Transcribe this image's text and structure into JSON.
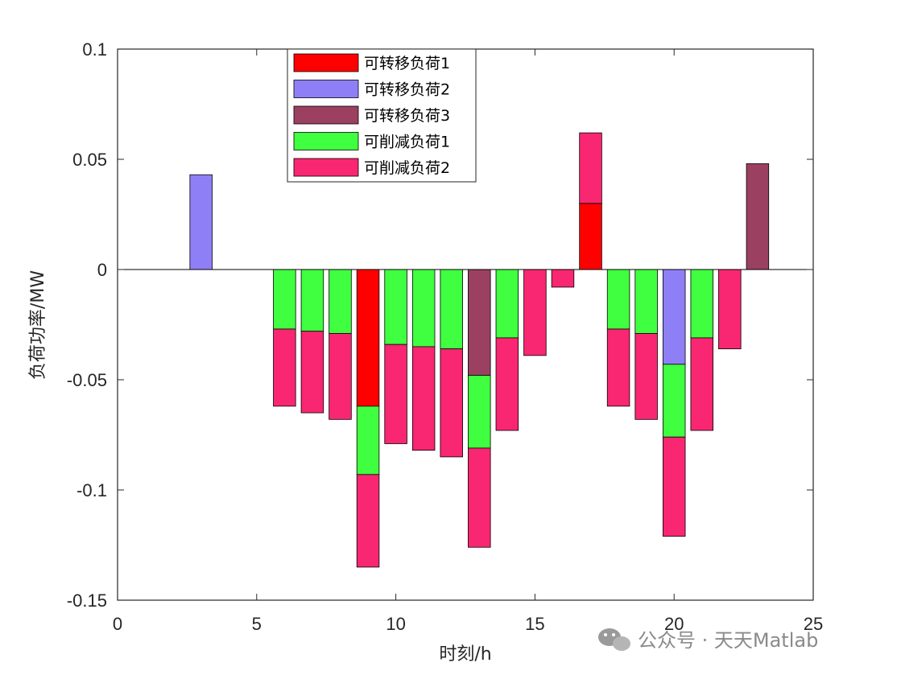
{
  "chart_data": {
    "type": "bar",
    "stacked": true,
    "xlabel": "时刻/h",
    "ylabel": "负荷功率/MW",
    "xlim": [
      0,
      25
    ],
    "ylim": [
      -0.15,
      0.1
    ],
    "xticks": [
      "0",
      "5",
      "10",
      "15",
      "20",
      "25"
    ],
    "yticks": [
      "0.1",
      "0.05",
      "0",
      "-0.05",
      "-0.1",
      "-0.15"
    ],
    "xtick_values": [
      0,
      5,
      10,
      15,
      20,
      25
    ],
    "ytick_values": [
      0.1,
      0.05,
      0,
      -0.05,
      -0.1,
      -0.15
    ],
    "legend_position": "top-left",
    "x": [
      1,
      2,
      3,
      4,
      5,
      6,
      7,
      8,
      9,
      10,
      11,
      12,
      13,
      14,
      15,
      16,
      17,
      18,
      19,
      20,
      21,
      22,
      23,
      24
    ],
    "series": [
      {
        "name": "可转移负荷1",
        "color": "#ff0000",
        "values": [
          0,
          0,
          0,
          0,
          0,
          0,
          0,
          0,
          -0.062,
          0,
          0,
          0,
          0,
          0,
          0,
          0,
          0.03,
          0,
          0,
          0,
          0,
          0,
          0,
          0
        ]
      },
      {
        "name": "可转移负荷2",
        "color": "#8f7ff6",
        "values": [
          0,
          0,
          0.043,
          0,
          0,
          0,
          0,
          0,
          0,
          0,
          0,
          0,
          0,
          0,
          0,
          0,
          0,
          0,
          0,
          -0.043,
          0,
          0,
          0,
          0
        ]
      },
      {
        "name": "可转移负荷3",
        "color": "#9b4061",
        "values": [
          0,
          0,
          0,
          0,
          0,
          0,
          0,
          0,
          0,
          0,
          0,
          0,
          -0.048,
          0,
          0,
          0,
          0,
          0,
          0,
          0,
          0,
          0,
          0.048,
          0
        ]
      },
      {
        "name": "可削减负荷1",
        "color": "#40ff40",
        "values": [
          0,
          0,
          0,
          0,
          0,
          -0.027,
          -0.028,
          -0.029,
          -0.031,
          -0.034,
          -0.035,
          -0.036,
          -0.033,
          -0.031,
          0,
          0,
          0,
          -0.027,
          -0.029,
          -0.033,
          -0.031,
          0,
          0,
          0
        ]
      },
      {
        "name": "可削减负荷2",
        "color": "#f92672",
        "values": [
          0,
          0,
          0,
          0,
          0,
          -0.035,
          -0.037,
          -0.039,
          -0.042,
          -0.045,
          -0.047,
          -0.049,
          -0.045,
          -0.042,
          -0.039,
          -0.008,
          0.032,
          -0.035,
          -0.039,
          -0.045,
          -0.042,
          -0.036,
          0,
          0
        ]
      }
    ]
  },
  "watermark": {
    "text": "公众号 · 天天Matlab",
    "icon": "wechat-icon"
  }
}
